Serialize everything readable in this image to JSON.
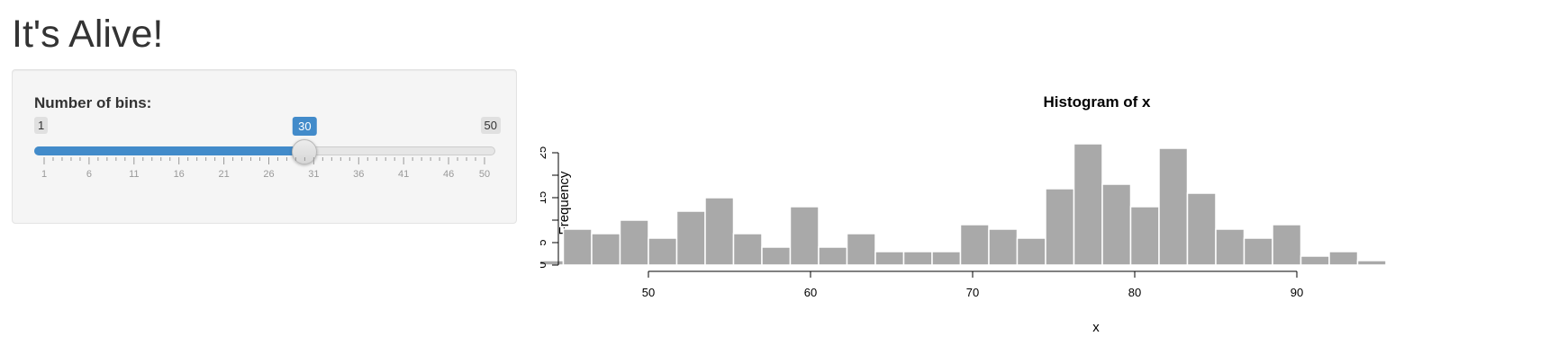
{
  "page": {
    "title": "It's Alive!"
  },
  "sidebar": {
    "bins_label": "Number of bins:",
    "slider": {
      "min": 1,
      "max": 50,
      "value": 30,
      "min_label": "1",
      "max_label": "50",
      "value_label": "30",
      "tick_labels": [
        "1",
        "6",
        "11",
        "16",
        "21",
        "26",
        "31",
        "36",
        "41",
        "46",
        "50"
      ],
      "accent_color": "#428bca"
    }
  },
  "plot": {
    "chart_data": {
      "type": "bar",
      "title": "Histogram of x",
      "xlabel": "x",
      "ylabel": "Frequency",
      "bin_width": 1.75,
      "bin_start": 43.0,
      "counts": [
        1,
        8,
        7,
        10,
        6,
        12,
        15,
        7,
        4,
        13,
        4,
        7,
        3,
        3,
        3,
        9,
        8,
        6,
        17,
        27,
        18,
        13,
        26,
        16,
        8,
        6,
        9,
        2,
        3,
        1
      ],
      "x_ticks": [
        50,
        60,
        70,
        80,
        90
      ],
      "x_tick_labels": [
        "50",
        "60",
        "70",
        "80",
        "90"
      ],
      "y_ticks": [
        0,
        5,
        10,
        15,
        20,
        25
      ],
      "y_tick_labels": [
        "0",
        "5",
        "",
        "15",
        "",
        "25"
      ],
      "ylim": [
        0,
        27
      ],
      "bar_color": "#a9a9a9",
      "bar_border": "#ffffff"
    }
  }
}
